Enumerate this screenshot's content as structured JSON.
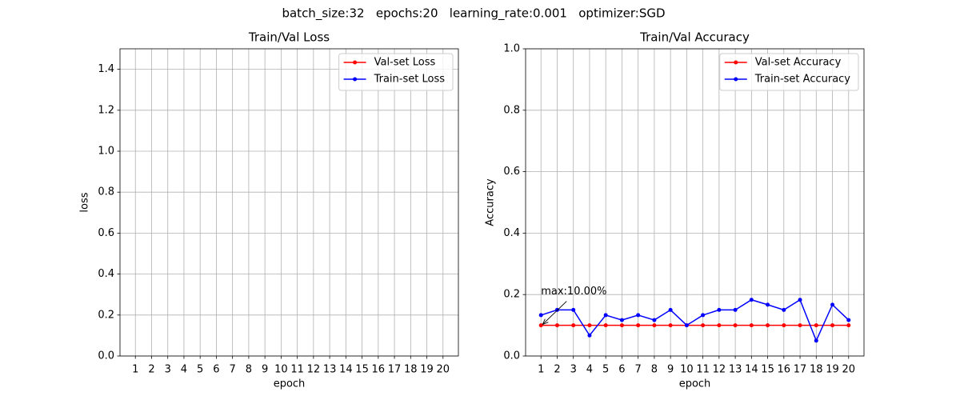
{
  "suptitle": "batch_size:32   epochs:20   learning_rate:0.001   optimizer:SGD",
  "chart_data": [
    {
      "type": "line",
      "title": "Train/Val Loss",
      "x_label": "epoch",
      "y_label": "loss",
      "x": [
        1,
        2,
        3,
        4,
        5,
        6,
        7,
        8,
        9,
        10,
        11,
        12,
        13,
        14,
        15,
        16,
        17,
        18,
        19,
        20
      ],
      "xlim": [
        0.05,
        20.95
      ],
      "xticks": [
        1,
        2,
        3,
        4,
        5,
        6,
        7,
        8,
        9,
        10,
        11,
        12,
        13,
        14,
        15,
        16,
        17,
        18,
        19,
        20
      ],
      "ylim": [
        0,
        1.5
      ],
      "yticks": [
        {
          "value": 0,
          "label": "0.0"
        },
        {
          "value": 0.2,
          "label": "0.2"
        },
        {
          "value": 0.4,
          "label": "0.4"
        },
        {
          "value": 0.6,
          "label": "0.6"
        },
        {
          "value": 0.8,
          "label": "0.8"
        },
        {
          "value": 1.0,
          "label": "1.0"
        },
        {
          "value": 1.2,
          "label": "1.2"
        },
        {
          "value": 1.4,
          "label": "1.4"
        }
      ],
      "grid": true,
      "legend": "upper right",
      "series": [
        {
          "name": "Val-set Loss",
          "color": "#ff0000",
          "values": [
            null,
            null,
            null,
            null,
            null,
            null,
            null,
            null,
            null,
            null,
            null,
            null,
            null,
            null,
            null,
            null,
            null,
            null,
            null,
            null
          ]
        },
        {
          "name": "Train-set Loss",
          "color": "#0000ff",
          "values": [
            null,
            null,
            null,
            null,
            null,
            null,
            null,
            null,
            null,
            null,
            null,
            null,
            null,
            null,
            null,
            null,
            null,
            null,
            null,
            null
          ]
        }
      ]
    },
    {
      "type": "line",
      "title": "Train/Val Accuracy",
      "x_label": "epoch",
      "y_label": "Accuracy",
      "x": [
        1,
        2,
        3,
        4,
        5,
        6,
        7,
        8,
        9,
        10,
        11,
        12,
        13,
        14,
        15,
        16,
        17,
        18,
        19,
        20
      ],
      "xlim": [
        0.05,
        20.95
      ],
      "xticks": [
        1,
        2,
        3,
        4,
        5,
        6,
        7,
        8,
        9,
        10,
        11,
        12,
        13,
        14,
        15,
        16,
        17,
        18,
        19,
        20
      ],
      "ylim": [
        0,
        1.0
      ],
      "yticks": [
        {
          "value": 0,
          "label": "0.0"
        },
        {
          "value": 0.2,
          "label": "0.2"
        },
        {
          "value": 0.4,
          "label": "0.4"
        },
        {
          "value": 0.6,
          "label": "0.6"
        },
        {
          "value": 0.8,
          "label": "0.8"
        },
        {
          "value": 1.0,
          "label": "1.0"
        }
      ],
      "grid": true,
      "legend": "upper right",
      "series": [
        {
          "name": "Val-set Accuracy",
          "color": "#ff0000",
          "values": [
            0.1,
            0.1,
            0.1,
            0.1,
            0.1,
            0.1,
            0.1,
            0.1,
            0.1,
            0.1,
            0.1,
            0.1,
            0.1,
            0.1,
            0.1,
            0.1,
            0.1,
            0.1,
            0.1,
            0.1
          ]
        },
        {
          "name": "Train-set Accuracy",
          "color": "#0000ff",
          "values": [
            0.133,
            0.15,
            0.15,
            0.067,
            0.133,
            0.117,
            0.133,
            0.117,
            0.15,
            0.1,
            0.133,
            0.15,
            0.15,
            0.183,
            0.167,
            0.15,
            0.183,
            0.05,
            0.167,
            0.117
          ]
        }
      ],
      "annotation": {
        "text": "max:10.00%",
        "x": 1,
        "y": 0.1
      }
    }
  ]
}
